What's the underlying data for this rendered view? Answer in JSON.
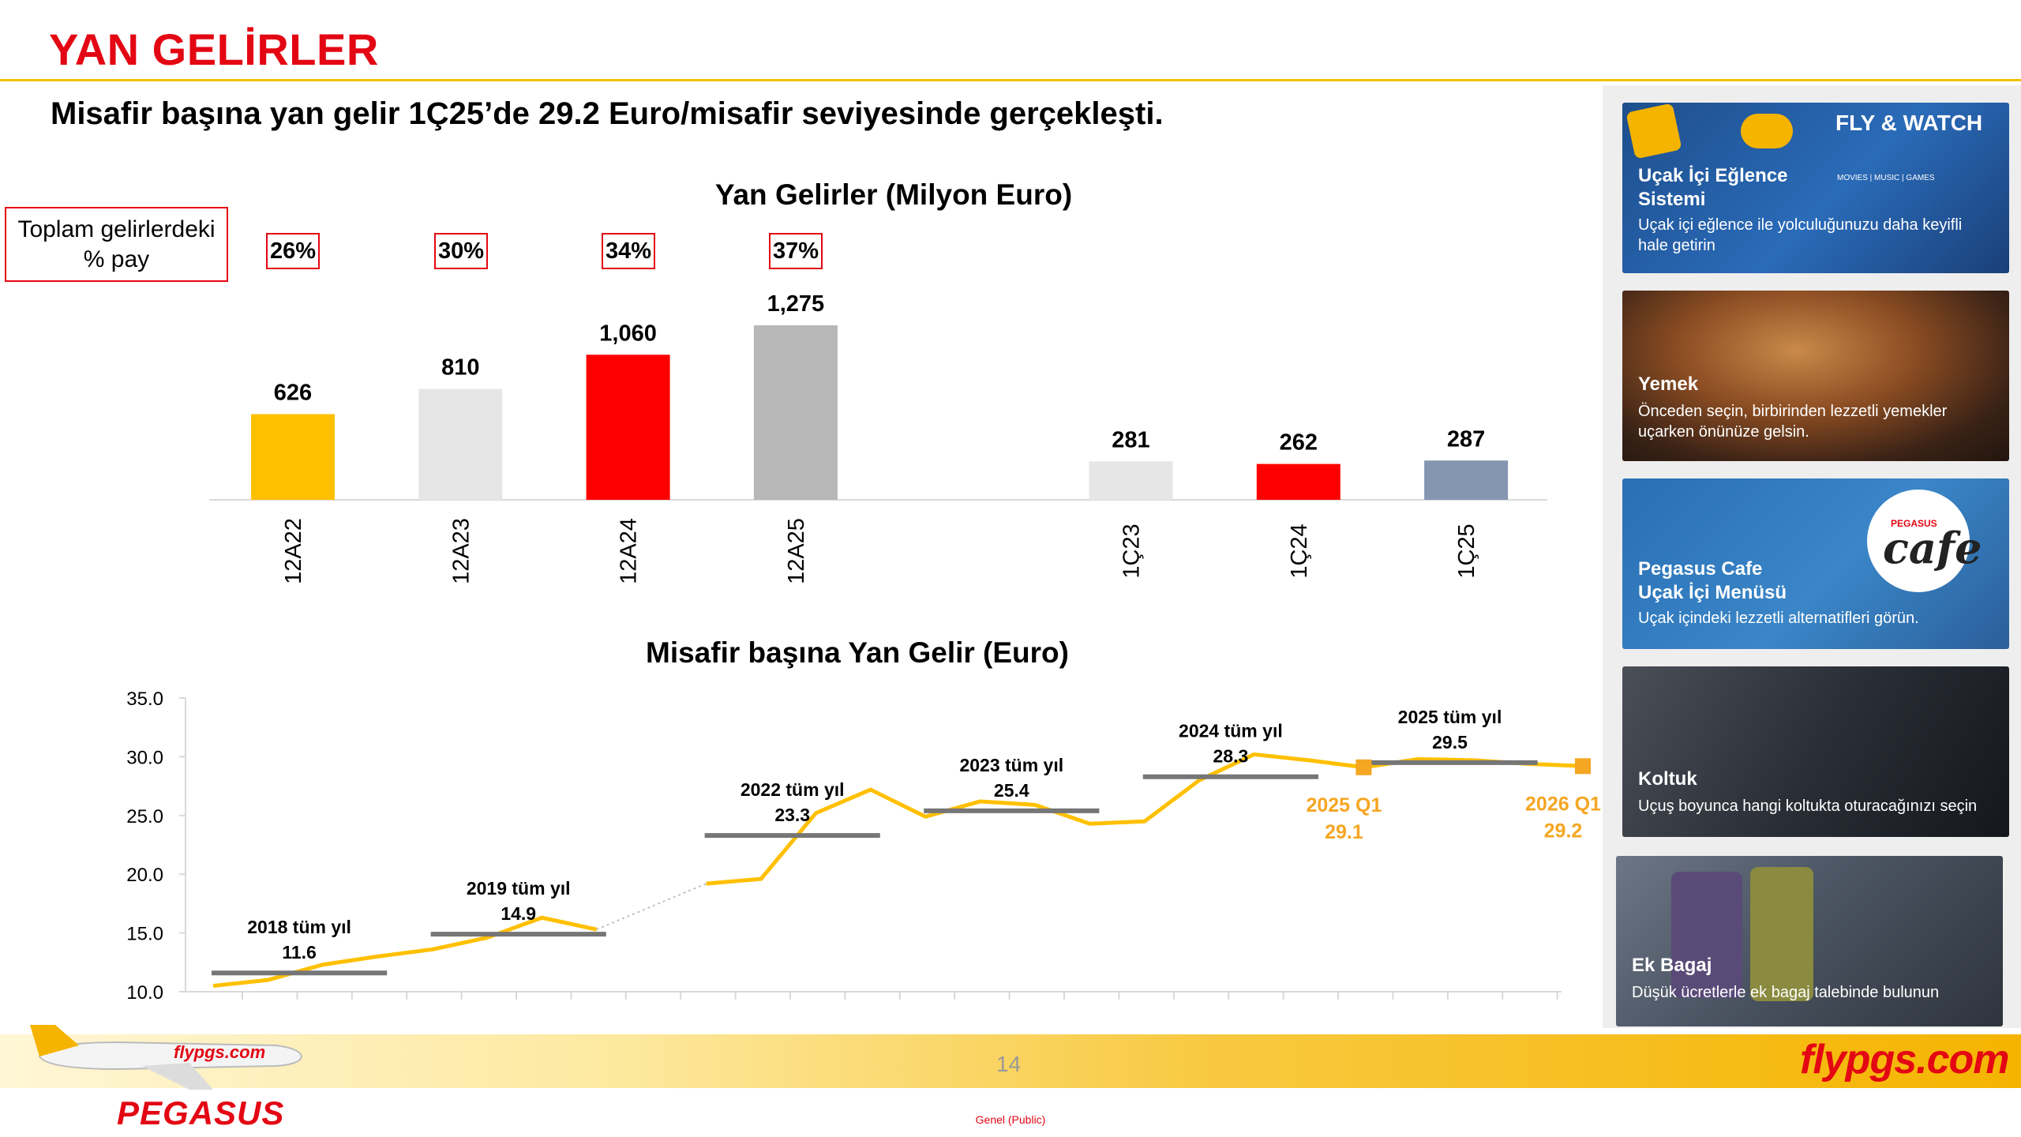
{
  "slide_title": "YAN GELİRLER",
  "subtitle": "Misafir başına yan gelir 1Ç25’de 29.2 Euro/misafir seviyesinde gerçekleşti.",
  "share_box_label": "Toplam gelirlerdeki % pay",
  "share_percentages": [
    "26%",
    "30%",
    "34%",
    "37%"
  ],
  "colors": {
    "accent_red": "#e30613",
    "yellow": "#ffc000",
    "light_gray": "#e7e6e6",
    "gray": "#b7b7b7",
    "blue_gray": "#8496b0",
    "line_yellow": "#ffc000",
    "avg_bar": "#767676",
    "highlight_orange": "#f5a623"
  },
  "chart_data": [
    {
      "type": "bar",
      "title": "Yan Gelirler (Milyon Euro)",
      "categories": [
        "12A22",
        "12A23",
        "12A24",
        "12A25",
        "",
        "1Ç23",
        "1Ç24",
        "1Ç25"
      ],
      "values": [
        626,
        810,
        1060,
        1275,
        null,
        281,
        262,
        287
      ],
      "value_labels": [
        "626",
        "810",
        "1,060",
        "1,275",
        "",
        "281",
        "262",
        "287"
      ],
      "bar_colors": [
        "#ffc000",
        "#e7e6e6",
        "#ff0000",
        "#b7b7b7",
        "",
        "#e7e6e6",
        "#ff0000",
        "#8496b0"
      ],
      "xlabel": "",
      "ylabel": ""
    },
    {
      "type": "line",
      "title": "Misafir başına Yan Gelir (Euro)",
      "xlabel": "",
      "ylabel": "",
      "ylim": [
        10,
        35
      ],
      "yticks": [
        "10.0",
        "15.0",
        "20.0",
        "25.0",
        "30.0",
        "35.0"
      ],
      "series": [
        {
          "values": [
            10.5,
            11.0,
            12.3,
            13.0,
            13.6,
            14.6,
            16.3,
            15.3,
            null,
            19.2,
            19.6,
            25.2,
            27.2,
            24.9,
            26.2,
            25.9,
            24.3,
            24.5,
            28.0,
            30.2,
            29.7,
            29.1,
            29.8,
            29.7,
            29.4,
            29.2
          ],
          "dotted_segment": [
            7,
            9
          ]
        }
      ],
      "annual_averages": [
        {
          "label": "2018 tüm yıl",
          "value": "11.6",
          "y": 11.6,
          "from_index": 0,
          "to_index": 3
        },
        {
          "label": "2019 tüm yıl",
          "value": "14.9",
          "y": 14.9,
          "from_index": 4,
          "to_index": 7
        },
        {
          "label": "2022 tüm yıl",
          "value": "23.3",
          "y": 23.3,
          "from_index": 9,
          "to_index": 12
        },
        {
          "label": "2023 tüm yıl",
          "value": "25.4",
          "y": 25.4,
          "from_index": 13,
          "to_index": 16
        },
        {
          "label": "2024 tüm yıl",
          "value": "28.3",
          "y": 28.3,
          "from_index": 17,
          "to_index": 20
        },
        {
          "label": "2025 tüm yıl",
          "value": "29.5",
          "y": 29.5,
          "from_index": 21,
          "to_index": 24
        }
      ],
      "quarter_highlights": [
        {
          "label": "2025 Q1",
          "value": "29.1",
          "index": 21,
          "y": 29.1
        },
        {
          "label": "2026 Q1",
          "value": "29.2",
          "index": 25,
          "y": 29.2
        }
      ]
    }
  ],
  "cards": [
    {
      "title": "Uçak İçi Eğlence Sistemi",
      "desc": "Uçak içi eğlence ile yolculuğunuzu daha keyifli hale getirin",
      "badge": "FLY & WATCH",
      "badge_sub": "MOVIES | MUSIC | GAMES"
    },
    {
      "title": "Yemek",
      "desc": "Önceden seçin, birbirinden lezzetli yemekler uçarken önünüze gelsin."
    },
    {
      "title": "Pegasus Cafe Uçak İçi Menüsü",
      "desc": "Uçak içindeki lezzetli alternatifleri görün.",
      "badge": "cafe",
      "badge_sub": "PEGASUS"
    },
    {
      "title": "Koltuk",
      "desc": "Uçuş boyunca hangi koltukta oturacağınızı seçin"
    },
    {
      "title": "Ek Bagaj",
      "desc": "Düşük ücretlerle ek bagaj talebinde bulunun"
    }
  ],
  "footer": {
    "page_number": "14",
    "brand": "flypgs.com",
    "logo_text": "PEGASUS",
    "plane_livery": "flypgs.com",
    "classification": "Genel (Public)"
  }
}
